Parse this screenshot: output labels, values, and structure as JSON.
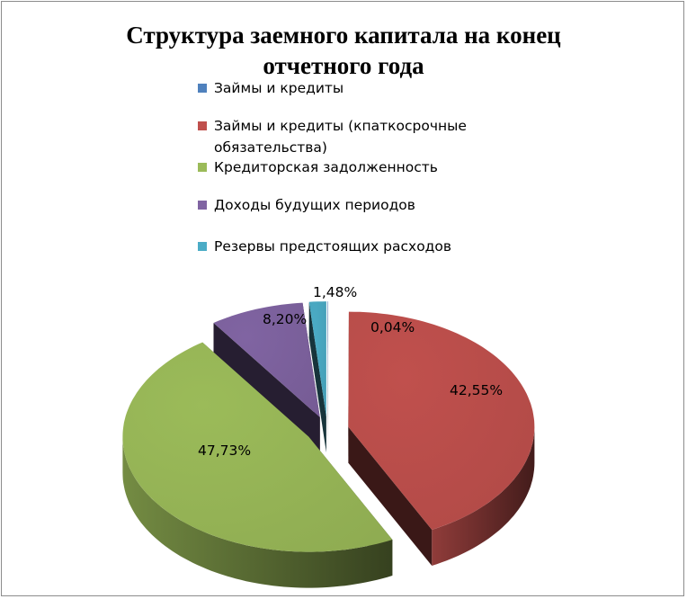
{
  "chart_data": {
    "type": "pie",
    "title": "Структура заемного капитала на конец отчетного года",
    "legend_position": "right",
    "categories": [
      "Займы и кредиты",
      "Займы и кредиты (кпаткосрочные обязательства)",
      "Кредиторская задолженность",
      "Доходы будущих периодов",
      "Резервы предстоящих расходов"
    ],
    "values": [
      0.04,
      42.55,
      47.73,
      8.2,
      1.48
    ],
    "labels": [
      "0,04%",
      "42,55%",
      "47,73%",
      "8,20%",
      "1,48%"
    ],
    "colors": [
      "#4f81bd",
      "#c0504d",
      "#9bbb59",
      "#8064a2",
      "#4bacc6"
    ]
  }
}
